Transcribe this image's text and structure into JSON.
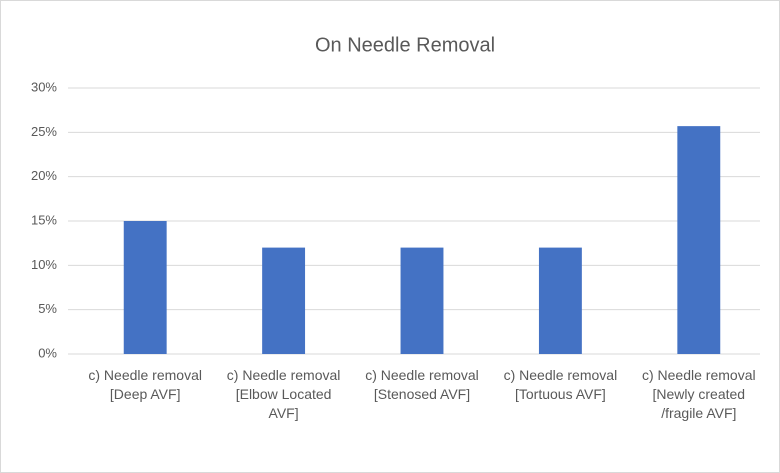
{
  "chart_data": {
    "type": "bar",
    "title": "On Needle Removal",
    "categories": [
      "c) Needle removal [Deep AVF]",
      "c) Needle removal [Elbow Located AVF]",
      "c) Needle removal [Stenosed AVF]",
      "c) Needle removal [Tortuous AVF]",
      "c) Needle removal [Newly created /fragile AVF]"
    ],
    "values": [
      15,
      12,
      12,
      12,
      25.7
    ],
    "color": "#4472c4",
    "ylim": [
      0,
      30
    ],
    "yticks": [
      {
        "value": 0,
        "label": "0%"
      },
      {
        "value": 5,
        "label": "5%"
      },
      {
        "value": 10,
        "label": "10%"
      },
      {
        "value": 15,
        "label": "15%"
      },
      {
        "value": 20,
        "label": "20%"
      },
      {
        "value": 25,
        "label": "25%"
      },
      {
        "value": 30,
        "label": "30%"
      }
    ],
    "grid": true
  }
}
